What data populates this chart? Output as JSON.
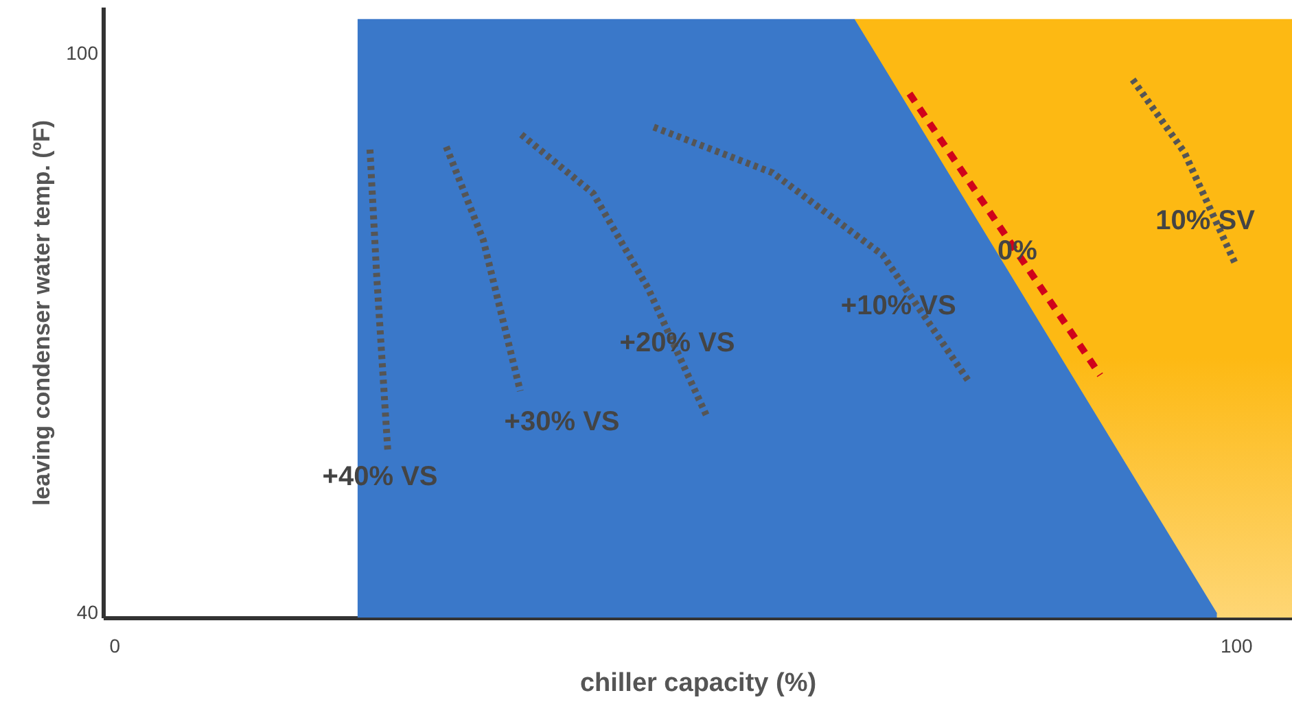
{
  "chart_data": {
    "type": "line",
    "xlabel": "chiller capacity (%)",
    "ylabel": "leaving condenser water temp. (ºF)",
    "xlim": [
      -1,
      105
    ],
    "ylim": [
      39.5,
      105
    ],
    "xticks": [
      0,
      100
    ],
    "yticks": [
      40,
      100
    ],
    "grid": false,
    "series": [
      {
        "type": "area",
        "color": "#fdb913",
        "x": [
          66,
          105
        ],
        "values": [
          103.7,
          103.7
        ]
      },
      {
        "type": "area",
        "color": "#3a78c9",
        "x": [
          21.7,
          25.9,
          66,
          98.3
        ],
        "values": [
          103.7,
          103.7,
          103.7,
          40
        ]
      },
      {
        "color": "#555555",
        "line_style": "dotted",
        "x": [
          22.8,
          23.4,
          24.4
        ],
        "values": [
          89.7,
          76.2,
          57.2
        ]
      },
      {
        "color": "#555555",
        "line_style": "dotted",
        "x": [
          29.6,
          32.9,
          36.2
        ],
        "values": [
          90.0,
          80.0,
          63.8
        ]
      },
      {
        "color": "#555555",
        "line_style": "dotted",
        "x": [
          36.3,
          42.7,
          47.6,
          52.9
        ],
        "values": [
          91.3,
          85.0,
          74.8,
          60.9
        ]
      },
      {
        "color": "#555555",
        "line_style": "dotted",
        "x": [
          48.1,
          58.7,
          68.5,
          76.2
        ],
        "values": [
          92.1,
          87.2,
          78.4,
          64.8
        ]
      },
      {
        "color": "#555555",
        "line_style": "dotted",
        "x": [
          90.8,
          95.4,
          100
        ],
        "values": [
          97.2,
          89.4,
          77.3
        ]
      },
      {
        "color": "#d0021b",
        "line_style": "dashed",
        "x": [
          70.9,
          87.9
        ],
        "values": [
          95.7,
          65.5
        ]
      }
    ],
    "annotations": [
      "+40% VS",
      "+30% VS",
      "+20% VS",
      "+10% VS",
      "0%",
      "10% SV"
    ]
  }
}
